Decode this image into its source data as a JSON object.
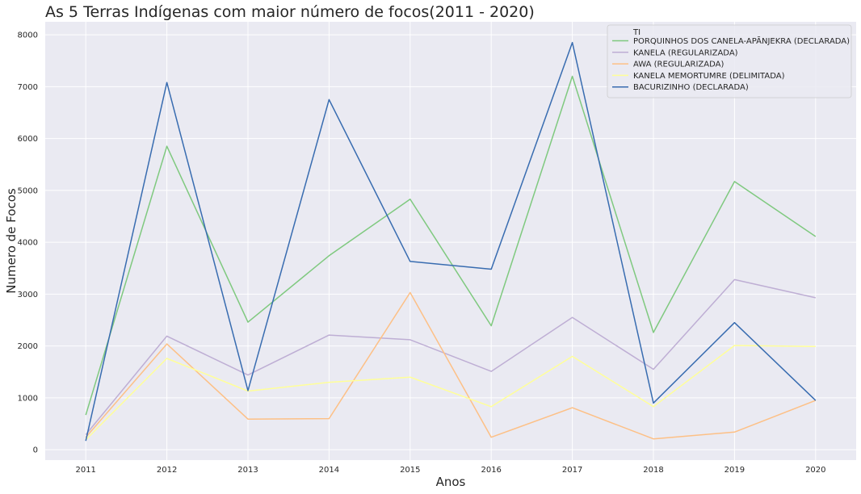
{
  "chart_data": {
    "type": "line",
    "title": "As 5 Terras Indígenas com maior número de focos(2011 - 2020)",
    "xlabel": "Anos",
    "ylabel": "Numero de Focos",
    "x": [
      "2011",
      "2012",
      "2013",
      "2014",
      "2015",
      "2016",
      "2017",
      "2018",
      "2019",
      "2020"
    ],
    "ylim": [
      -200,
      8250
    ],
    "yticks": [
      0,
      1000,
      2000,
      3000,
      4000,
      5000,
      6000,
      7000,
      8000
    ],
    "grid": true,
    "legend_title": "TI",
    "legend_position": "top-right",
    "series": [
      {
        "name": "PORQUINHOS DOS CANELA-APÃNJEKRA (DECLARADA)",
        "color": "#7fc97f",
        "values": [
          670,
          5850,
          2460,
          3740,
          4830,
          2390,
          7200,
          2260,
          5170,
          4110
        ]
      },
      {
        "name": "KANELA (REGULARIZADA)",
        "color": "#beaed4",
        "values": [
          290,
          2190,
          1440,
          2210,
          2120,
          1510,
          2550,
          1550,
          3280,
          2930
        ]
      },
      {
        "name": "AWA (REGULARIZADA)",
        "color": "#fdc086",
        "values": [
          240,
          2040,
          590,
          600,
          3030,
          240,
          810,
          210,
          340,
          950
        ]
      },
      {
        "name": "KANELA MEMORTUMRE (DELIMITADA)",
        "color": "#ffff99",
        "values": [
          190,
          1760,
          1130,
          1300,
          1400,
          830,
          1800,
          830,
          2010,
          1990
        ]
      },
      {
        "name": "BACURIZINHO (DECLARADA)",
        "color": "#386cb0",
        "values": [
          170,
          7080,
          1140,
          6750,
          3630,
          3480,
          7850,
          900,
          2450,
          950
        ]
      }
    ]
  }
}
